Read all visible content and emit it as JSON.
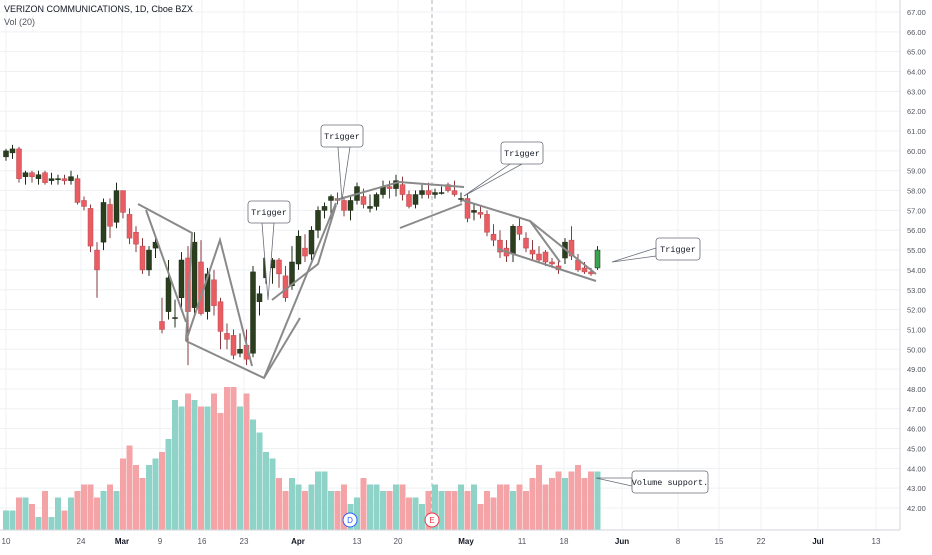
{
  "header": {
    "title": "VERIZON COMMUNICATIONS, 1D, Cboe BZX",
    "volume_label": "Vol (20)"
  },
  "colors": {
    "up": "#2b3f1f",
    "down": "#e85c62",
    "up_last": "#3aa34d",
    "vol_up": "#8fd3c8",
    "vol_down": "#f4a3a6",
    "pattern": "#8a8a8a",
    "grid": "#eef0f3",
    "axis_text": "#50535e"
  },
  "chart_data": {
    "type": "candlestick",
    "ylim": [
      41.5,
      67.5
    ],
    "y_ticks": [
      "42.00",
      "43.00",
      "44.00",
      "45.00",
      "46.00",
      "47.00",
      "48.00",
      "49.00",
      "50.00",
      "51.00",
      "52.00",
      "53.00",
      "54.00",
      "55.00",
      "56.00",
      "57.00",
      "58.00",
      "59.00",
      "60.00",
      "61.00",
      "62.00",
      "63.00",
      "64.00",
      "65.00",
      "66.00",
      "67.00"
    ],
    "x_ticks": [
      "10",
      "24",
      "Mar",
      "9",
      "16",
      "23",
      "Apr",
      "13",
      "20",
      "May",
      "11",
      "18",
      "Jun",
      "8",
      "15",
      "22",
      "Jul",
      "13"
    ],
    "x_tick_bold": [
      "Mar",
      "Apr",
      "May",
      "Jun",
      "Jul"
    ],
    "events": [
      "D",
      "E"
    ],
    "candles": [
      [
        59.7,
        60.1,
        59.5,
        60.0
      ],
      [
        59.9,
        60.3,
        59.6,
        60.1
      ],
      [
        60.1,
        60.2,
        58.4,
        58.6
      ],
      [
        58.7,
        59.0,
        58.3,
        58.9
      ],
      [
        58.9,
        59.0,
        58.4,
        58.7
      ],
      [
        58.6,
        59.0,
        58.3,
        58.8
      ],
      [
        58.9,
        59.0,
        58.3,
        58.4
      ],
      [
        58.5,
        58.9,
        58.3,
        58.6
      ],
      [
        58.6,
        58.8,
        58.3,
        58.6
      ],
      [
        58.6,
        58.8,
        58.3,
        58.5
      ],
      [
        58.5,
        59.0,
        58.3,
        58.7
      ],
      [
        58.6,
        58.8,
        57.3,
        57.4
      ],
      [
        57.5,
        57.7,
        57.0,
        57.2
      ],
      [
        57.1,
        57.3,
        54.9,
        55.2
      ],
      [
        55.0,
        55.4,
        52.6,
        54.0
      ],
      [
        55.4,
        57.6,
        55.0,
        57.4
      ],
      [
        57.3,
        57.6,
        55.6,
        56.2
      ],
      [
        56.4,
        58.4,
        56.1,
        58.0
      ],
      [
        58.0,
        58.0,
        56.6,
        56.9
      ],
      [
        56.8,
        57.1,
        55.3,
        55.6
      ],
      [
        55.9,
        56.2,
        54.9,
        55.3
      ],
      [
        55.2,
        55.6,
        53.8,
        54.0
      ],
      [
        54.0,
        55.2,
        53.7,
        55.0
      ],
      [
        55.1,
        55.6,
        54.6,
        55.4
      ],
      [
        51.4,
        52.6,
        50.8,
        51.0
      ],
      [
        51.9,
        54.5,
        51.5,
        53.6
      ],
      [
        51.6,
        52.5,
        51.1,
        51.6
      ],
      [
        52.6,
        54.9,
        52.1,
        54.5
      ],
      [
        54.6,
        55.2,
        49.2,
        51.9
      ],
      [
        52.1,
        55.9,
        51.8,
        55.4
      ],
      [
        54.4,
        55.5,
        51.7,
        51.8
      ],
      [
        51.9,
        54.1,
        51.5,
        53.8
      ],
      [
        53.5,
        54.0,
        51.7,
        52.2
      ],
      [
        52.4,
        52.6,
        50.0,
        50.9
      ],
      [
        50.8,
        51.3,
        50.0,
        50.5
      ],
      [
        50.7,
        51.0,
        49.5,
        49.7
      ],
      [
        49.8,
        50.8,
        49.6,
        50.0
      ],
      [
        50.2,
        51.0,
        49.2,
        49.5
      ],
      [
        49.8,
        54.2,
        49.6,
        53.9
      ],
      [
        52.4,
        53.2,
        51.7,
        52.8
      ],
      [
        53.6,
        55.0,
        53.3,
        54.6
      ],
      [
        54.1,
        54.6,
        53.3,
        54.5
      ],
      [
        54.5,
        54.6,
        53.1,
        53.8
      ],
      [
        53.7,
        54.2,
        52.4,
        52.6
      ],
      [
        53.2,
        55.2,
        53.0,
        54.4
      ],
      [
        54.3,
        56.0,
        54.0,
        55.7
      ],
      [
        55.1,
        55.8,
        54.4,
        54.7
      ],
      [
        54.8,
        56.2,
        54.5,
        56.0
      ],
      [
        56.0,
        57.2,
        55.6,
        57.0
      ],
      [
        57.0,
        57.4,
        56.6,
        57.2
      ],
      [
        57.5,
        57.8,
        56.5,
        57.7
      ],
      [
        57.6,
        57.9,
        57.3,
        57.5
      ],
      [
        57.5,
        57.7,
        56.7,
        57.0
      ],
      [
        57.0,
        57.7,
        56.5,
        57.5
      ],
      [
        57.5,
        58.4,
        57.3,
        58.2
      ],
      [
        57.7,
        58.1,
        57.1,
        57.3
      ],
      [
        57.1,
        57.8,
        56.9,
        57.2
      ],
      [
        57.2,
        57.9,
        57.0,
        57.8
      ],
      [
        57.8,
        58.5,
        57.6,
        58.2
      ],
      [
        58.2,
        58.5,
        57.6,
        58.1
      ],
      [
        58.1,
        58.8,
        57.7,
        58.5
      ],
      [
        58.3,
        58.7,
        57.5,
        57.8
      ],
      [
        57.8,
        58.0,
        57.1,
        57.2
      ],
      [
        57.3,
        58.0,
        57.1,
        57.8
      ],
      [
        57.8,
        58.3,
        57.6,
        58.0
      ],
      [
        58.0,
        58.4,
        57.6,
        57.8
      ],
      [
        57.8,
        58.1,
        57.6,
        57.9
      ],
      [
        57.9,
        58.2,
        57.8,
        57.9
      ],
      [
        58.3,
        58.4,
        57.9,
        58.0
      ],
      [
        58.0,
        58.5,
        57.7,
        57.8
      ],
      [
        57.6,
        57.9,
        57.4,
        57.6
      ],
      [
        57.6,
        57.8,
        56.4,
        56.6
      ],
      [
        56.9,
        57.3,
        56.5,
        57.0
      ],
      [
        56.9,
        57.2,
        56.6,
        56.8
      ],
      [
        56.8,
        57.0,
        55.7,
        55.9
      ],
      [
        55.8,
        56.3,
        55.2,
        55.5
      ],
      [
        55.5,
        56.0,
        54.6,
        54.9
      ],
      [
        55.1,
        55.5,
        54.4,
        54.7
      ],
      [
        54.8,
        56.3,
        54.4,
        56.2
      ],
      [
        56.2,
        56.6,
        55.5,
        55.8
      ],
      [
        55.6,
        55.9,
        54.9,
        55.1
      ],
      [
        55.0,
        55.5,
        54.5,
        54.8
      ],
      [
        54.8,
        55.2,
        54.4,
        54.5
      ],
      [
        54.9,
        55.0,
        54.2,
        54.4
      ],
      [
        54.4,
        54.6,
        54.1,
        54.3
      ],
      [
        54.2,
        54.5,
        53.8,
        54.0
      ],
      [
        54.6,
        55.6,
        54.3,
        55.4
      ],
      [
        55.5,
        56.2,
        54.5,
        54.7
      ],
      [
        54.5,
        54.8,
        53.9,
        54.0
      ],
      [
        54.1,
        54.4,
        53.8,
        53.9
      ],
      [
        53.9,
        54.1,
        53.7,
        53.8
      ],
      [
        54.1,
        55.2,
        54.0,
        55.0
      ]
    ],
    "volumes": [
      3,
      3,
      5,
      5,
      4,
      2,
      6,
      2,
      5,
      3,
      5,
      6,
      7,
      7,
      5,
      6,
      7,
      6,
      11,
      13,
      10,
      8,
      10,
      11,
      12,
      14,
      20,
      19,
      21,
      20,
      19,
      19,
      21,
      18,
      22,
      22,
      19,
      21,
      17,
      15,
      12,
      11,
      8,
      6,
      8,
      7,
      6,
      7,
      9,
      9,
      6,
      6,
      7,
      4,
      5,
      8,
      7,
      7,
      6,
      6,
      7,
      7,
      5,
      5,
      4,
      6,
      7,
      6,
      6,
      6,
      7,
      6,
      7,
      4,
      6,
      5,
      7,
      7,
      6,
      7,
      6,
      8,
      10,
      7,
      8,
      9,
      8,
      9,
      10,
      8,
      9,
      9
    ],
    "annotations": [
      "Trigger",
      "Trigger",
      "Trigger",
      "Trigger",
      "Volume support."
    ]
  }
}
